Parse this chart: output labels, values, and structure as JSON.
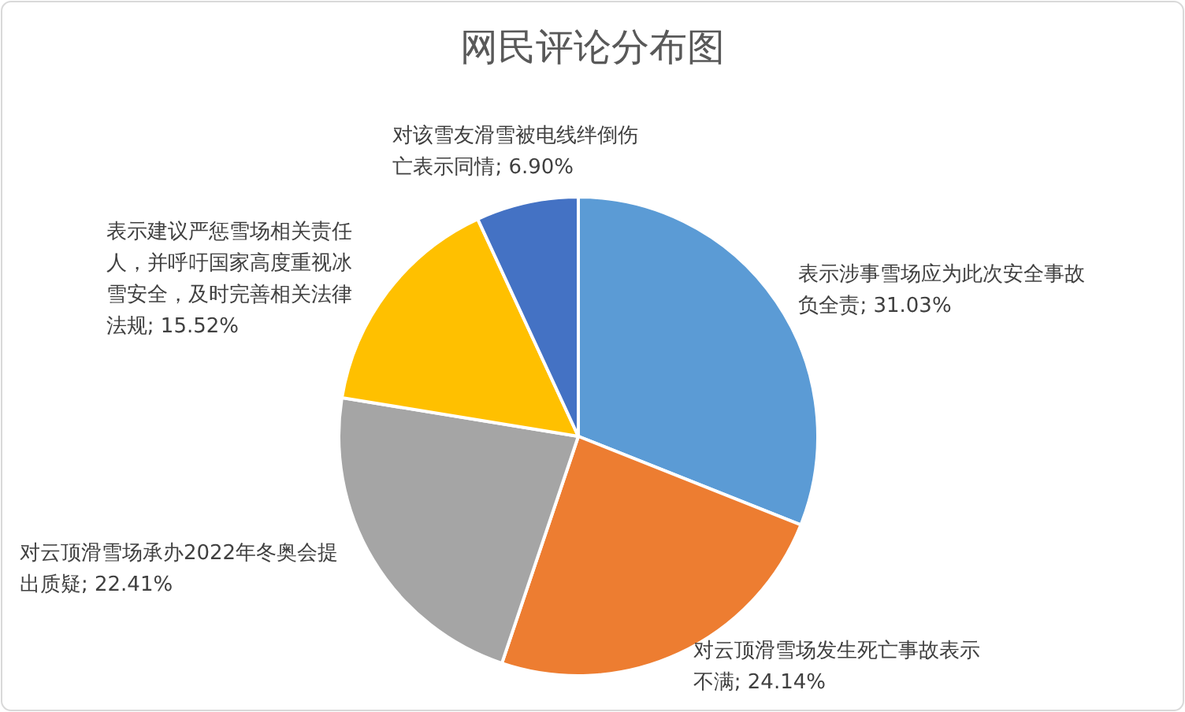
{
  "chart_data": {
    "type": "pie",
    "title": "网民评论分布图",
    "categories": [
      "表示涉事雪场应为此次安全事故负全责",
      "对云顶滑雪场发生死亡事故表示不满",
      "对云顶滑雪场承办2022年冬奥会提出质疑",
      "表示建议严惩雪场相关责任人，并呼吁国家高度重视冰雪安全，及时完善相关法律法规",
      "对该雪友滑雪被电线绊倒伤亡表示同情"
    ],
    "values": [
      31.03,
      24.14,
      22.41,
      15.52,
      6.9
    ],
    "value_labels": [
      "31.03%",
      "24.14%",
      "22.41%",
      "15.52%",
      "6.90%"
    ],
    "colors": [
      "#5b9bd5",
      "#ed7d31",
      "#a5a5a5",
      "#ffc000",
      "#4472c4"
    ]
  }
}
